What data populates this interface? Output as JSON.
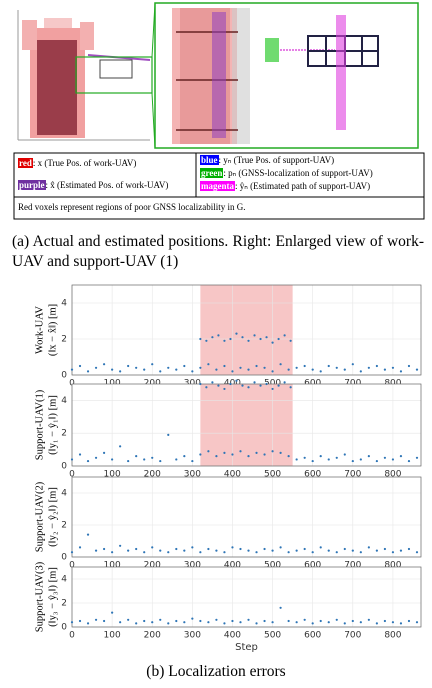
{
  "figure_a": {
    "legend": {
      "items": [
        {
          "key": "red",
          "color": "#e00000",
          "text": ": x (True Pos. of work-UAV)"
        },
        {
          "key": "purple",
          "color": "#7030a0",
          "text": ": x̂ (Estimated Pos. of work-UAV)"
        },
        {
          "key": "blue",
          "color": "#0000ff",
          "text": ": yₙ (True Pos. of support-UAV)"
        },
        {
          "key": "green",
          "color": "#00b000",
          "text": ": pₙ (GNSS-localization of support-UAV)"
        },
        {
          "key": "magenta",
          "color": "#ff00ff",
          "text": ": ŷₙ (Estimated path of support-UAV)"
        }
      ],
      "note": "Red voxels represent regions of poor GNSS localizability in G."
    },
    "caption": "(a) Actual and estimated positions. Right: Enlarged view of work-UAV and support-UAV (1)"
  },
  "chart_data": [
    {
      "type": "scatter",
      "ylabel": [
        "Work-UAV",
        "(‖x − x̂‖) [m]"
      ],
      "color": "#2e75b6",
      "highlight": {
        "range": [
          320,
          550
        ],
        "color": "#f7c6c6"
      },
      "xlim": [
        0,
        870
      ],
      "xticks": [
        0,
        100,
        200,
        300,
        400,
        500,
        600,
        700,
        800
      ],
      "ylim": [
        0,
        5
      ],
      "yticks": [
        0,
        2,
        4
      ],
      "grid": true,
      "x": [
        0,
        20,
        40,
        60,
        80,
        100,
        120,
        140,
        160,
        180,
        200,
        220,
        240,
        260,
        280,
        300,
        320,
        340,
        360,
        380,
        400,
        420,
        440,
        460,
        480,
        500,
        520,
        540,
        560,
        580,
        600,
        620,
        640,
        660,
        680,
        700,
        720,
        740,
        760,
        780,
        800,
        820,
        840,
        860,
        320,
        335,
        350,
        365,
        380,
        395,
        410,
        425,
        440,
        455,
        470,
        485,
        500,
        515,
        530,
        545
      ],
      "values": [
        0.3,
        0.5,
        0.2,
        0.4,
        0.6,
        0.3,
        0.2,
        0.5,
        0.4,
        0.3,
        0.6,
        0.2,
        0.4,
        0.3,
        0.5,
        0.2,
        0.4,
        0.6,
        0.3,
        0.5,
        0.2,
        0.4,
        0.3,
        0.5,
        0.4,
        0.2,
        0.6,
        0.3,
        0.4,
        0.5,
        0.3,
        0.2,
        0.5,
        0.4,
        0.3,
        0.6,
        0.2,
        0.4,
        0.5,
        0.3,
        0.4,
        0.2,
        0.5,
        0.3,
        2.0,
        1.9,
        2.1,
        2.2,
        1.9,
        2.0,
        2.3,
        2.1,
        1.9,
        2.2,
        2.0,
        2.1,
        1.8,
        2.0,
        2.2,
        1.9
      ]
    },
    {
      "type": "scatter",
      "ylabel": [
        "Support-UAV(1)",
        "(‖y₁ − ŷ₁‖) [m]"
      ],
      "color": "#2e75b6",
      "highlight": {
        "range": [
          320,
          550
        ],
        "color": "#f7c6c6"
      },
      "xlim": [
        0,
        870
      ],
      "xticks": [
        0,
        100,
        200,
        300,
        400,
        500,
        600,
        700,
        800
      ],
      "ylim": [
        0,
        5
      ],
      "yticks": [
        0,
        2,
        4
      ],
      "grid": true,
      "x": [
        0,
        20,
        40,
        60,
        80,
        100,
        120,
        140,
        160,
        180,
        200,
        220,
        240,
        260,
        280,
        300,
        320,
        340,
        360,
        380,
        400,
        420,
        440,
        460,
        480,
        500,
        520,
        540,
        560,
        580,
        600,
        620,
        640,
        660,
        680,
        700,
        720,
        740,
        760,
        780,
        800,
        820,
        840,
        860,
        320,
        335,
        350,
        365,
        380,
        395,
        410,
        425,
        440,
        455,
        470,
        485,
        500,
        515,
        530,
        545
      ],
      "values": [
        0.4,
        0.7,
        0.3,
        0.5,
        0.8,
        0.4,
        1.2,
        0.3,
        0.6,
        0.4,
        0.5,
        0.3,
        1.9,
        0.4,
        0.6,
        0.3,
        0.7,
        0.9,
        0.6,
        0.8,
        0.7,
        0.9,
        0.6,
        0.8,
        0.7,
        0.9,
        0.8,
        0.6,
        0.4,
        0.5,
        0.3,
        0.6,
        0.4,
        0.5,
        0.7,
        0.3,
        0.4,
        0.6,
        0.3,
        0.5,
        0.4,
        0.6,
        0.3,
        0.5,
        5.0,
        4.8,
        5.1,
        4.9,
        4.7,
        5.0,
        5.2,
        4.9,
        4.8,
        5.1,
        4.9,
        5.0,
        4.7,
        4.9,
        5.1,
        4.8
      ]
    },
    {
      "type": "scatter",
      "ylabel": [
        "Support-UAV(2)",
        "(‖y₂ − ŷ₂‖) [m]"
      ],
      "color": "#2e75b6",
      "xlim": [
        0,
        870
      ],
      "xticks": [
        0,
        100,
        200,
        300,
        400,
        500,
        600,
        700,
        800
      ],
      "ylim": [
        0,
        5
      ],
      "yticks": [
        0,
        2,
        4
      ],
      "grid": true,
      "x": [
        0,
        20,
        40,
        60,
        80,
        100,
        120,
        140,
        160,
        180,
        200,
        220,
        240,
        260,
        280,
        300,
        320,
        340,
        360,
        380,
        400,
        420,
        440,
        460,
        480,
        500,
        520,
        540,
        560,
        580,
        600,
        620,
        640,
        660,
        680,
        700,
        720,
        740,
        760,
        780,
        800,
        820,
        840,
        860
      ],
      "values": [
        0.3,
        0.6,
        1.4,
        0.4,
        0.5,
        0.3,
        0.7,
        0.4,
        0.5,
        0.3,
        0.6,
        0.4,
        0.3,
        0.5,
        0.4,
        0.6,
        0.3,
        0.5,
        0.4,
        0.3,
        0.6,
        0.5,
        0.4,
        0.3,
        0.5,
        0.4,
        0.6,
        0.3,
        0.4,
        0.5,
        0.3,
        0.6,
        0.4,
        0.3,
        0.5,
        0.4,
        0.3,
        0.6,
        0.4,
        0.5,
        0.3,
        0.4,
        0.5,
        0.3
      ]
    },
    {
      "type": "scatter",
      "ylabel": [
        "Support-UAV(3)",
        "(‖y₃ − ŷ₃‖) [m]"
      ],
      "color": "#2e75b6",
      "xlabel": "Step",
      "xlim": [
        0,
        870
      ],
      "xticks": [
        0,
        100,
        200,
        300,
        400,
        500,
        600,
        700,
        800
      ],
      "ylim": [
        0,
        5
      ],
      "yticks": [
        0,
        2,
        4
      ],
      "grid": true,
      "x": [
        0,
        20,
        40,
        60,
        80,
        100,
        120,
        140,
        160,
        180,
        200,
        220,
        240,
        260,
        280,
        300,
        320,
        340,
        360,
        380,
        400,
        420,
        440,
        460,
        480,
        500,
        520,
        540,
        560,
        580,
        600,
        620,
        640,
        660,
        680,
        700,
        720,
        740,
        760,
        780,
        800,
        820,
        840,
        860
      ],
      "values": [
        0.4,
        0.5,
        0.3,
        0.6,
        0.5,
        1.2,
        0.4,
        0.6,
        0.3,
        0.5,
        0.4,
        0.6,
        0.3,
        0.5,
        0.4,
        0.7,
        0.5,
        0.4,
        0.6,
        0.3,
        0.5,
        0.4,
        0.6,
        0.3,
        0.5,
        0.4,
        1.6,
        0.5,
        0.4,
        0.6,
        0.3,
        0.5,
        0.4,
        0.6,
        0.3,
        0.5,
        0.4,
        0.6,
        0.3,
        0.5,
        0.4,
        0.3,
        0.5,
        0.4
      ]
    }
  ],
  "caption_b": "(b) Localization errors"
}
